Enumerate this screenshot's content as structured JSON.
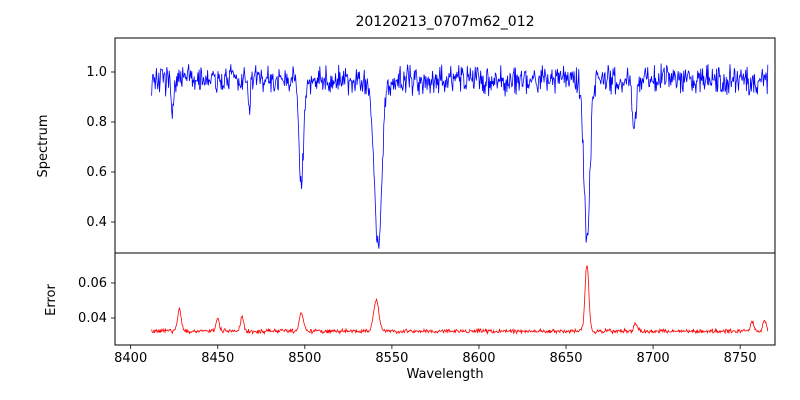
{
  "chart_data": [
    {
      "type": "line",
      "name": "spectrum",
      "title": "20120213_0707m62_012",
      "xlabel": "Wavelength",
      "ylabel": "Spectrum",
      "line_color": "#0000ff",
      "grid": false,
      "legend": "none",
      "xlim": [
        8391,
        8770
      ],
      "ylim": [
        0.276,
        1.136
      ],
      "xticks": [
        8400,
        8450,
        8500,
        8550,
        8600,
        8650,
        8700,
        8750
      ],
      "ytick_labels": [
        "0.4",
        "0.6",
        "0.8",
        "1.0"
      ],
      "x_data_range": [
        8412,
        8766
      ],
      "continuum_level": 0.97,
      "noise_amplitude": 0.07,
      "absorption_lines": [
        {
          "center": 8424,
          "depth": 0.1,
          "sigma": 0.8
        },
        {
          "center": 8468,
          "depth": 0.12,
          "sigma": 0.9
        },
        {
          "center": 8498,
          "depth": 0.43,
          "sigma": 1.3
        },
        {
          "center": 8542,
          "depth": 0.66,
          "sigma": 2.2
        },
        {
          "center": 8662,
          "depth": 0.64,
          "sigma": 1.7
        },
        {
          "center": 8689,
          "depth": 0.2,
          "sigma": 1.1
        }
      ]
    },
    {
      "type": "line",
      "name": "error",
      "ylabel": "Error",
      "line_color": "#ff0000",
      "grid": false,
      "ylim": [
        0.0246,
        0.0771
      ],
      "ytick_labels": [
        "0.04",
        "0.06"
      ],
      "baseline_level": 0.0325,
      "noise_amplitude": 0.0015,
      "peaks": [
        {
          "center": 8428,
          "height": 0.0125,
          "sigma": 1.0
        },
        {
          "center": 8450,
          "height": 0.0075,
          "sigma": 0.9
        },
        {
          "center": 8464,
          "height": 0.0085,
          "sigma": 0.9
        },
        {
          "center": 8498,
          "height": 0.01,
          "sigma": 1.2
        },
        {
          "center": 8541,
          "height": 0.0175,
          "sigma": 1.5
        },
        {
          "center": 8662,
          "height": 0.038,
          "sigma": 1.1
        },
        {
          "center": 8690,
          "height": 0.0045,
          "sigma": 1.0
        },
        {
          "center": 8757,
          "height": 0.0055,
          "sigma": 1.0
        },
        {
          "center": 8764,
          "height": 0.006,
          "sigma": 0.9
        }
      ]
    }
  ]
}
